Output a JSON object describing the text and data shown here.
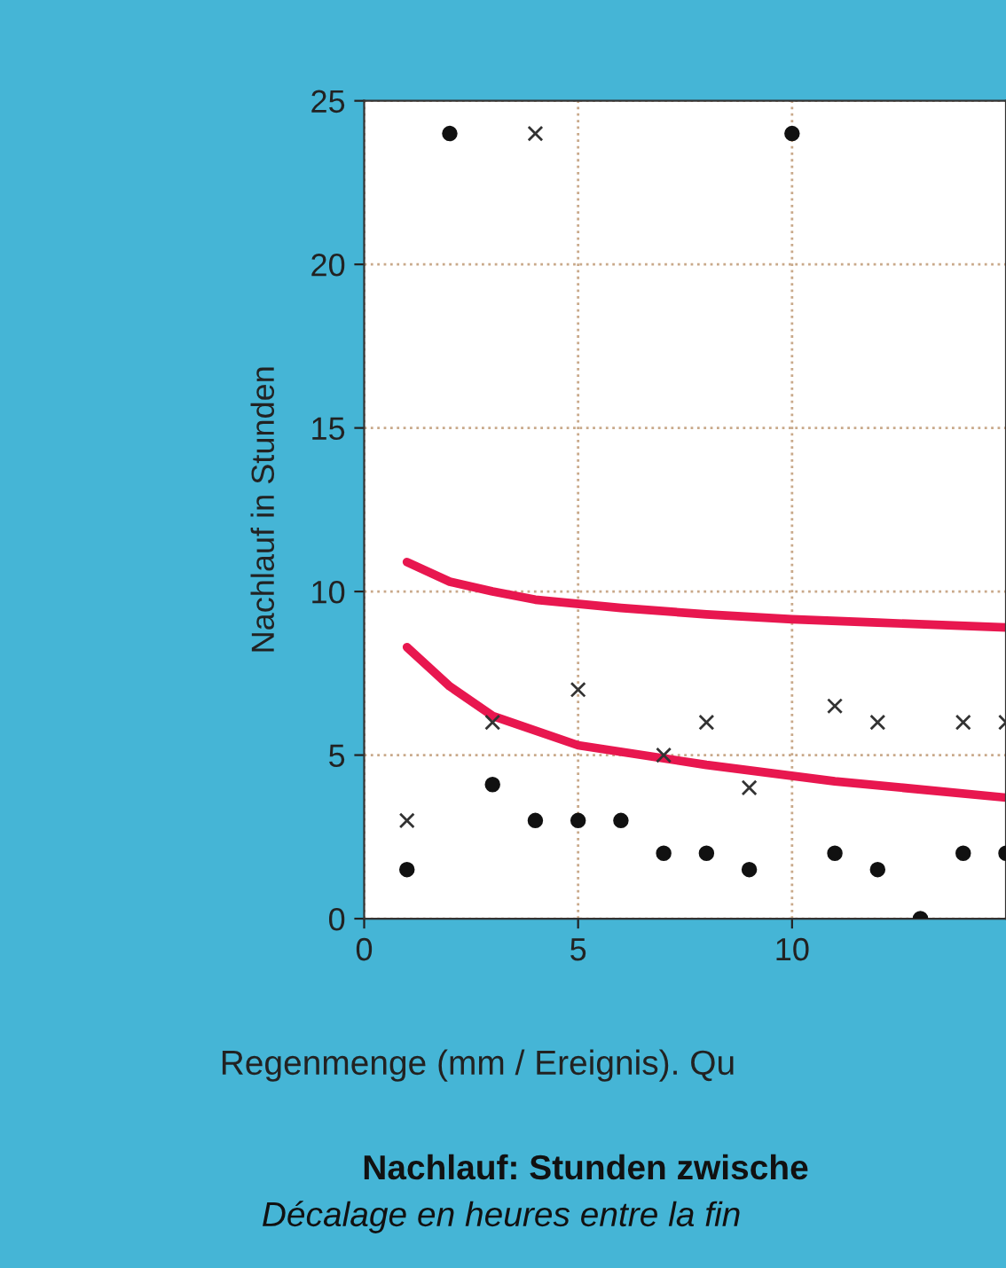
{
  "chart_data": {
    "type": "scatter",
    "xlabel": "Regenmenge (mm / Ereignis). Qu",
    "ylabel": "Nachlauf in Stunden",
    "annotations": [
      "Nachlauf: Stunden zwische",
      "Décalage en heures entre la fin"
    ],
    "xlim": [
      0,
      15
    ],
    "xticks": [
      0,
      5,
      10
    ],
    "ylim": [
      0,
      25
    ],
    "yticks": [
      0,
      5,
      10,
      15,
      20,
      25
    ],
    "grid": true,
    "legend": false,
    "series": [
      {
        "marker": "circle",
        "color": "#111111",
        "x": [
          1,
          2,
          3,
          4,
          5,
          6,
          7,
          8,
          9,
          10,
          11,
          12,
          13,
          14,
          15
        ],
        "values": [
          1.5,
          24,
          4.1,
          3,
          3,
          3,
          2,
          2,
          1.5,
          24,
          2,
          1.5,
          0,
          2,
          2
        ]
      },
      {
        "marker": "cross",
        "color": "#333333",
        "x": [
          1,
          3,
          4,
          5,
          7,
          8,
          9,
          11,
          12,
          14,
          15
        ],
        "values": [
          3,
          6,
          24,
          7,
          5,
          6,
          4,
          6.5,
          6,
          6,
          6
        ]
      },
      {
        "type": "line",
        "marker": "none",
        "color": "#e8174f",
        "x": [
          1,
          2,
          3,
          4,
          6,
          8,
          10,
          12,
          15
        ],
        "values": [
          10.9,
          10.3,
          10.0,
          9.75,
          9.5,
          9.3,
          9.15,
          9.05,
          8.9
        ]
      },
      {
        "type": "line",
        "marker": "none",
        "color": "#e8174f",
        "x": [
          1,
          2,
          3,
          5,
          8,
          11,
          15
        ],
        "values": [
          8.3,
          7.1,
          6.2,
          5.3,
          4.7,
          4.2,
          3.7
        ]
      }
    ]
  }
}
